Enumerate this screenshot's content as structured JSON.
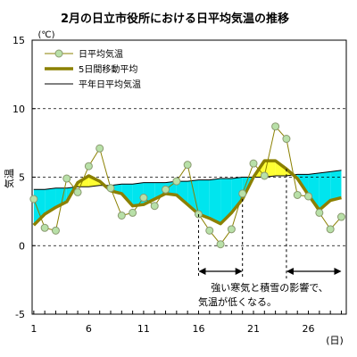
{
  "chart_data": {
    "type": "line",
    "title": "2月の日立市役所における日平均気温の推移",
    "ylabel": "気温",
    "y_unit_label": "(℃)",
    "x_unit_label": "(日)",
    "xlim": [
      1,
      29
    ],
    "ylim": [
      -5,
      15
    ],
    "y_ticks": [
      15,
      10,
      5,
      0,
      -5
    ],
    "x_ticks": [
      1,
      6,
      11,
      16,
      21,
      26
    ],
    "grid": "horizontal-dashed",
    "legend_position": "top-left",
    "x": [
      1,
      2,
      3,
      4,
      5,
      6,
      7,
      8,
      9,
      10,
      11,
      12,
      13,
      14,
      15,
      16,
      17,
      18,
      19,
      20,
      21,
      22,
      23,
      24,
      25,
      26,
      27,
      28,
      29
    ],
    "series": [
      {
        "name": "日平均気温",
        "style": "thin-line-circle-markers",
        "color": "#8b8000",
        "marker_fill": "#b8e0a8",
        "values": [
          3.4,
          1.3,
          1.1,
          4.9,
          3.9,
          5.8,
          7.1,
          4.2,
          2.2,
          2.4,
          3.5,
          2.9,
          4.1,
          4.7,
          5.9,
          2.3,
          1.1,
          0.1,
          1.2,
          3.8,
          6.0,
          5.1,
          8.7,
          7.8,
          3.7,
          3.6,
          2.4,
          1.2,
          2.1
        ]
      },
      {
        "name": "5日間移動平均",
        "style": "thick-line",
        "color": "#8b8000",
        "values": [
          1.5,
          2.3,
          2.8,
          3.2,
          4.6,
          5.1,
          4.7,
          4.0,
          3.8,
          2.9,
          3.0,
          3.4,
          3.8,
          3.7,
          3.0,
          2.3,
          2.0,
          1.6,
          2.4,
          3.4,
          5.0,
          6.2,
          6.2,
          5.6,
          4.9,
          3.7,
          2.6,
          3.3,
          3.5
        ]
      },
      {
        "name": "平年日平均気温",
        "style": "thin-line",
        "color": "#000000",
        "values": [
          4.1,
          4.1,
          4.2,
          4.2,
          4.3,
          4.3,
          4.4,
          4.4,
          4.5,
          4.5,
          4.6,
          4.6,
          4.6,
          4.7,
          4.7,
          4.8,
          4.8,
          4.9,
          4.9,
          5.0,
          5.0,
          5.0,
          5.1,
          5.1,
          5.2,
          5.2,
          5.3,
          5.4,
          5.5
        ]
      }
    ],
    "fill_below_color": "#00e5ee",
    "fill_above_color": "#ffff33",
    "annotation": {
      "line1": "強い寒気と積雪の影響で、",
      "line2": "気温が低くなる。",
      "ranges": [
        [
          16,
          20
        ],
        [
          24,
          29
        ]
      ]
    }
  }
}
